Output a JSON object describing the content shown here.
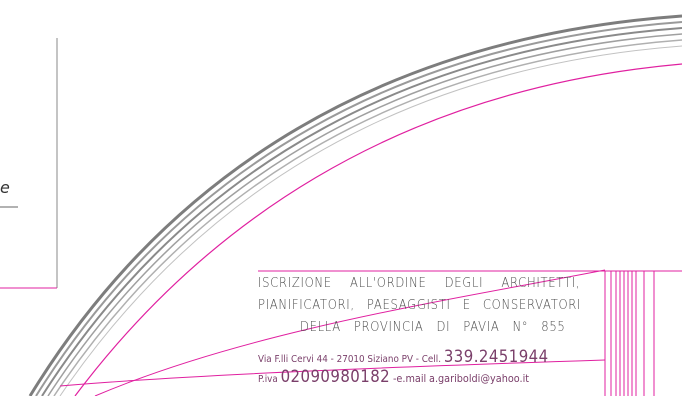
{
  "colors": {
    "magenta": "#e020a0",
    "gray_arc": "#7d7d7d",
    "light_gray_arc": "#b5b5b5",
    "text": "#4d4d4d",
    "address_text": "#7a3f6a"
  },
  "cutoff_text": "e",
  "header": {
    "line1": "ISCRIZIONE ALL'ORDINE DEGLI ARCHITETTI,",
    "line2": "PIANIFICATORI, PAESAGGISTI E CONSERVATORI",
    "line3": "DELLA PROVINCIA DI PAVIA N° 855"
  },
  "contact": {
    "address": "Via F.lli Cervi 44 - 27010 Siziano PV - Cell.",
    "phone": "339.2451944",
    "piva_label": "P.iva",
    "piva": "02090980182",
    "email_label": "-e.mail",
    "email": "a.gariboldi@yahoo.it"
  }
}
